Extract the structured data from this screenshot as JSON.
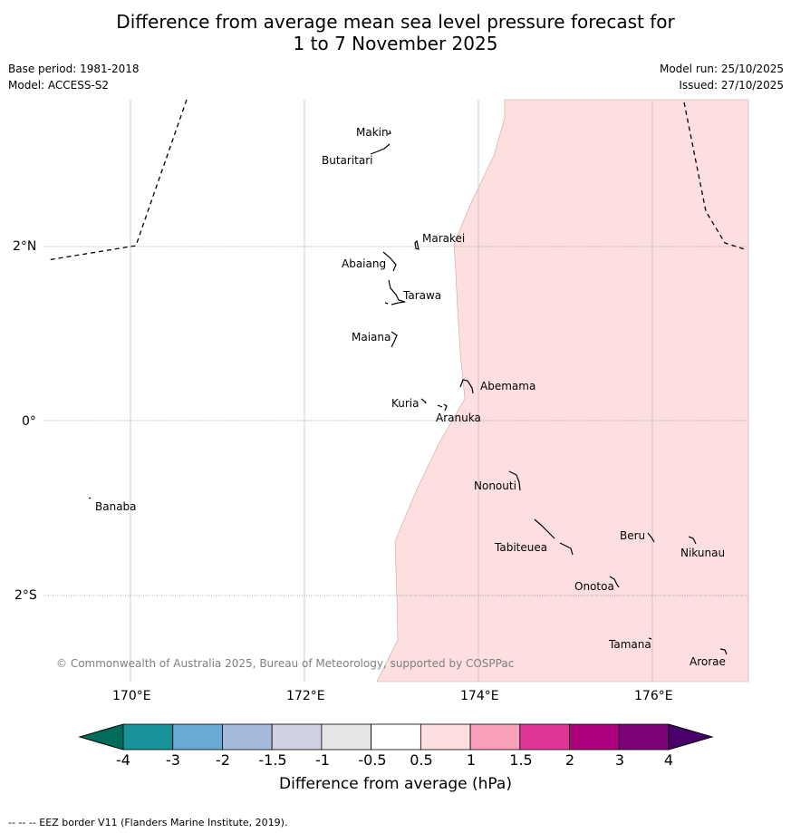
{
  "title": {
    "line1": "Difference from average mean sea level pressure forecast for",
    "line2": "1 to 7 November 2025"
  },
  "meta": {
    "base_period": "Base period: 1981-2018",
    "model": "Model: ACCESS-S2",
    "model_run": "Model run: 25/10/2025",
    "issued": "Issued: 27/10/2025"
  },
  "map": {
    "lat_ticks": [
      "2°N",
      "0°",
      "2°S"
    ],
    "lon_ticks": [
      "170°E",
      "172°E",
      "174°E",
      "176°E"
    ],
    "places": [
      "Makin",
      "Butaritari",
      "Marakei",
      "Abaiang",
      "Tarawa",
      "Maiana",
      "Abemama",
      "Kuria",
      "Aranuka",
      "Banaba",
      "Nonouti",
      "Beru",
      "Nikunau",
      "Tabiteuea",
      "Onotoa",
      "Tamana",
      "Arorae"
    ],
    "shaded_category": "0.5 to 1",
    "copyright": "© Commonwealth of Australia 2025, Bureau of Meteorology, supported by COSPPac"
  },
  "colorbar": {
    "label": "Difference from average (hPa)",
    "ticks": [
      "-4",
      "-3",
      "-2",
      "-1.5",
      "-1",
      "-0.5",
      "0.5",
      "1",
      "1.5",
      "2",
      "3",
      "4"
    ],
    "colors": [
      "#1a9098",
      "#6aa9d3",
      "#a6badc",
      "#d0d0e4",
      "#e9e6e9",
      "#ffffff",
      "#fddfdf",
      "#f9a1bb",
      "#de3799",
      "#ae017e",
      "#7a0177"
    ],
    "under_color": "#016c59",
    "over_color": "#49006a"
  },
  "footer": {
    "eez_note": "--  --  -- EEZ border V11 (Flanders Marine Institute, 2019)."
  }
}
